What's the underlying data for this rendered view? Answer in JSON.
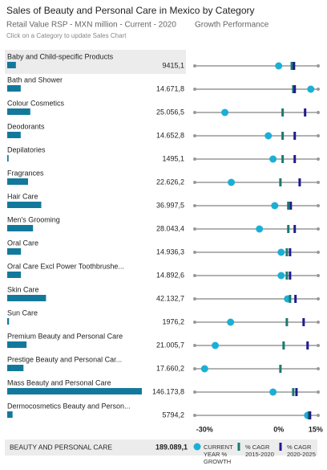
{
  "header": {
    "title": "Sales of Beauty and Personal Care in Mexico by Category",
    "subtitle": "Retail Value RSP - MXN million - Current - 2020",
    "growth_title": "Growth Performance",
    "hint": "Click on a Category to update Sales Chart"
  },
  "chart_data": [
    {
      "type": "bar",
      "color": "#13799c",
      "categories": [
        "Baby and Child-specific Products",
        "Bath and Shower",
        "Colour Cosmetics",
        "Deodorants",
        "Depilatories",
        "Fragrances",
        "Hair Care",
        "Men's Grooming",
        "Oral Care",
        "Oral Care Excl Power Toothbrushe...",
        "Skin Care",
        "Sun Care",
        "Premium Beauty and Personal Care",
        "Prestige Beauty and Personal Car...",
        "Mass Beauty and Personal Care",
        "Dermocosmetics Beauty and Person..."
      ],
      "values": [
        9415.1,
        14671.8,
        25056.5,
        14652.8,
        1495.1,
        22626.2,
        36997.5,
        28043.4,
        14936.3,
        14892.6,
        42132.7,
        1976.2,
        21005.7,
        17660.2,
        146173.8,
        5794.2
      ],
      "value_labels": [
        "9415,1",
        "14.671,8",
        "25.056,5",
        "14.652,8",
        "1495,1",
        "22.626,2",
        "36.997,5",
        "28.043,4",
        "14.936,3",
        "14.892,6",
        "42.132,7",
        "1976,2",
        "21.005,7",
        "17.660,2",
        "146.173,8",
        "5794,2"
      ]
    },
    {
      "type": "dot",
      "xlim": [
        -34,
        16
      ],
      "xticks": [
        {
          "value": -30,
          "label": "-30%"
        },
        {
          "value": 0,
          "label": "0%"
        },
        {
          "value": 15,
          "label": "15%"
        }
      ],
      "series": [
        {
          "name": "CURRENT YEAR % GROWTH",
          "color": "#1bafd6",
          "values": [
            0,
            13,
            -21.8,
            -4.2,
            -2.3,
            -19.2,
            -1.6,
            -7.8,
            1,
            1,
            3.6,
            -19.5,
            -25.7,
            -30,
            -2.3,
            11.7
          ]
        },
        {
          "name": "% CAGR 2015-2020",
          "color": "#1a7a6c",
          "values": [
            5.3,
            5.9,
            1.6,
            1.6,
            1.6,
            0.7,
            3.9,
            3.9,
            3.3,
            3.3,
            4.6,
            3.3,
            2,
            0.7,
            5.9,
            12.2
          ]
        },
        {
          "name": "% CAGR 2020-2025",
          "color": "#1f1b8f",
          "values": [
            6.2,
            6.5,
            10.7,
            6.5,
            6.5,
            8.5,
            4.9,
            6.5,
            4.6,
            4.6,
            6.8,
            10.1,
            11.7,
            null,
            7.2,
            12.7
          ]
        }
      ]
    }
  ],
  "total": {
    "label": "BEAUTY AND PERSONAL CARE",
    "value": 189089.1,
    "value_label": "189.089,1"
  }
}
